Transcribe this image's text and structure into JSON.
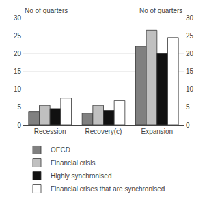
{
  "chart_data": {
    "type": "bar",
    "categories": [
      "Recession",
      "Recovery(c)",
      "Expansion"
    ],
    "series": [
      {
        "name": "OECD",
        "color": "#808080",
        "values": [
          3.7,
          3.3,
          22.0
        ]
      },
      {
        "name": "Financial crisis",
        "color": "#c0c0c0",
        "values": [
          5.5,
          5.5,
          26.5
        ]
      },
      {
        "name": "Highly synchronised",
        "color": "#111111",
        "values": [
          4.6,
          4.1,
          20.0
        ]
      },
      {
        "name": "Financial crises that are synchronised",
        "color": "#ffffff",
        "values": [
          7.5,
          6.8,
          24.5
        ]
      }
    ],
    "ylabel": "No of quarters",
    "y2label": "No of quarters",
    "ylim": [
      0,
      30
    ],
    "yticks": [
      0,
      5,
      10,
      15,
      20,
      25,
      30
    ],
    "y2lim": [
      0,
      30
    ],
    "y2ticks": [
      0,
      5,
      10,
      15,
      20,
      25,
      30
    ],
    "grid": true,
    "legend": "bottom"
  }
}
